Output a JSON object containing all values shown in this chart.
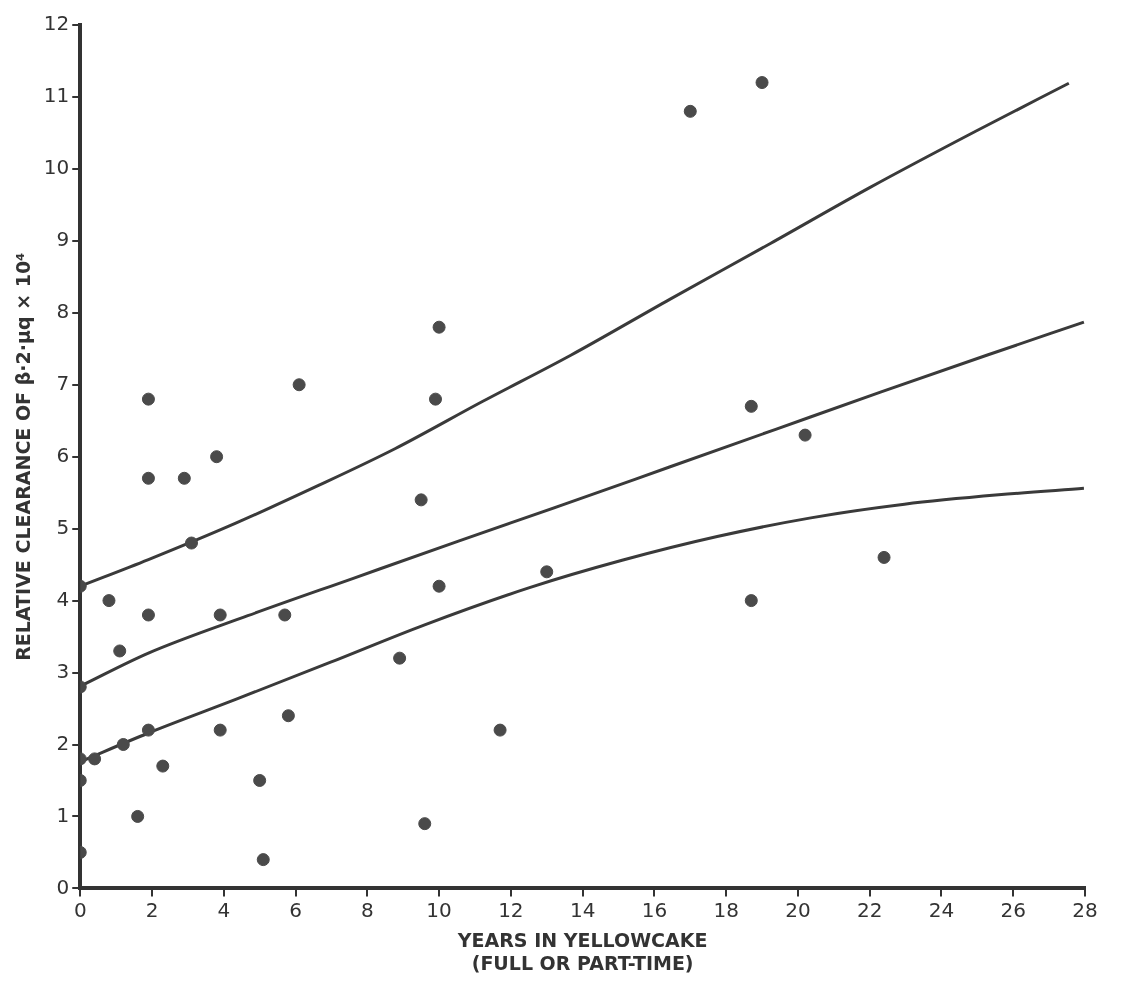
{
  "chart_data": {
    "type": "scatter",
    "ylabel": "RELATIVE CLEARANCE OF β·2·μq × 10⁴",
    "xlabel": "YEARS IN YELLOWCAKE\n(FULL OR PART-TIME)",
    "xlim": [
      0,
      28
    ],
    "xticks": [
      0,
      2,
      4,
      6,
      8,
      10,
      12,
      14,
      16,
      18,
      20,
      22,
      24,
      26,
      28
    ],
    "ylim": [
      0,
      12
    ],
    "yticks": [
      0,
      1,
      2,
      3,
      4,
      5,
      6,
      7,
      8,
      9,
      10,
      11,
      12
    ],
    "series": [
      {
        "marker": "circle",
        "color": "#4a4a4a",
        "x": [
          0,
          0,
          0,
          0.4,
          1.2,
          1.6,
          2.3,
          1.9,
          3.9,
          5.1,
          5.0,
          5.8,
          0,
          1.1,
          1.9,
          3.9,
          5.7,
          0.8,
          0,
          3.1,
          1.9,
          2.9,
          3.8,
          1.9,
          6.1,
          9.6,
          8.9,
          10.0,
          9.5,
          9.9,
          10.0,
          11.7,
          13.0,
          18.7,
          18.7,
          20.2,
          22.4,
          17.0,
          19.0
        ],
        "values": [
          0.5,
          1.5,
          1.8,
          1.8,
          2.0,
          1.0,
          1.7,
          2.2,
          2.2,
          0.4,
          1.5,
          2.4,
          2.8,
          3.3,
          3.8,
          3.8,
          3.8,
          4.0,
          4.2,
          4.8,
          5.7,
          5.7,
          6.0,
          6.8,
          7.0,
          0.9,
          3.2,
          4.2,
          5.4,
          6.8,
          7.8,
          2.2,
          4.4,
          4.0,
          6.7,
          6.3,
          4.6,
          10.8,
          11.2
        ]
      },
      {
        "type": "line",
        "marker": "none",
        "color": "#3a3a3a",
        "x": [
          0,
          1.9,
          4.35,
          6.96,
          9.58,
          12.52,
          15.1,
          17.75,
          20.36,
          22.97,
          25.59,
          27.97
        ],
        "values": [
          1.76,
          2.16,
          2.63,
          3.14,
          3.66,
          4.18,
          4.56,
          4.89,
          5.15,
          5.34,
          5.47,
          5.56
        ]
      },
      {
        "type": "line",
        "marker": "none",
        "color": "#3a3a3a",
        "x": [
          0,
          1.9,
          4.67,
          7.61,
          10.56,
          13.5,
          16.44,
          19.38,
          22.32,
          25.26,
          27.97
        ],
        "values": [
          2.81,
          3.27,
          3.79,
          4.31,
          4.83,
          5.34,
          5.86,
          6.38,
          6.9,
          7.41,
          7.87
        ]
      },
      {
        "type": "line",
        "marker": "none",
        "color": "#3a3a3a",
        "x": [
          0,
          1.9,
          4.35,
          6.64,
          8.77,
          11.22,
          13.67,
          16.44,
          19.22,
          22.0,
          24.94,
          27.55
        ],
        "values": [
          4.2,
          4.57,
          5.08,
          5.6,
          6.11,
          6.77,
          7.41,
          8.19,
          8.96,
          9.74,
          10.52,
          11.19
        ]
      }
    ]
  }
}
